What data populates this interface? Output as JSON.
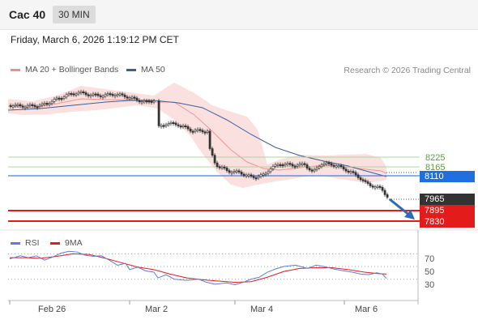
{
  "header": {
    "title": "Cac 40",
    "timeframe": "30 MIN"
  },
  "timestamp": "Friday, March 6, 2026 1:19:12 PM CET",
  "credit": "Research © 2026 Trading Central",
  "colors": {
    "ma20": "#f28b8b",
    "ma50": "#3a5fa0",
    "band": "#f9d6d6",
    "candle": "#333333",
    "support": "#e31b1b",
    "resist": "#a8d89a",
    "pivot": "#4a7fd4",
    "rsi": "#5b7fd6",
    "rsi_ma": "#e31b1b",
    "arrow": "#2e6ab5"
  },
  "chart_data": [
    {
      "type": "line",
      "x": [
        "Feb 26",
        "Mar 2",
        "Mar 4",
        "Mar 6"
      ],
      "series": [
        {
          "name": "MA 20 + Bollinger Bands"
        },
        {
          "name": "MA 50"
        }
      ],
      "levels": {
        "resistance": [
          8225,
          8165
        ],
        "pivot": 8110,
        "last": 7965,
        "support": [
          7895,
          7830
        ]
      }
    },
    {
      "type": "line",
      "series": [
        {
          "name": "RSI"
        },
        {
          "name": "9MA"
        }
      ],
      "y_levels": [
        70,
        50,
        30
      ],
      "ylim": [
        0,
        100
      ]
    }
  ]
}
